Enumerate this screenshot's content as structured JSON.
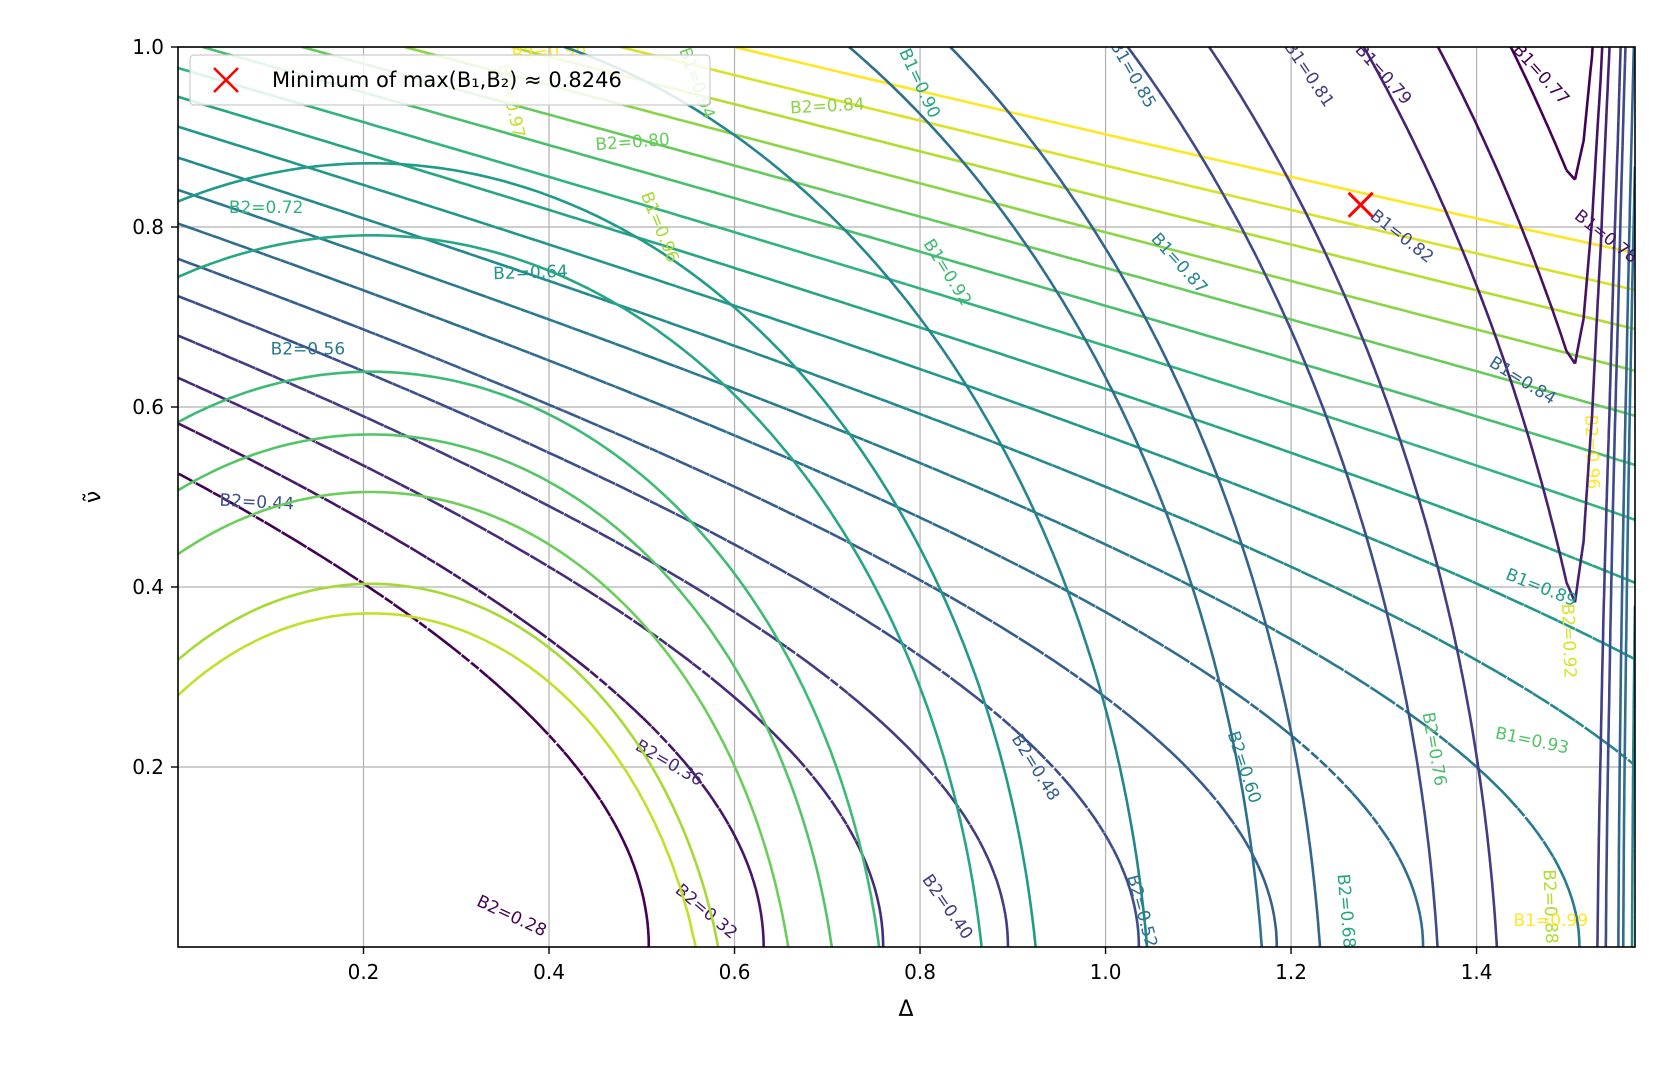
{
  "chart_data": {
    "type": "contour",
    "title": "",
    "xlabel": "Δ",
    "ylabel": "ν̃",
    "xlim": [
      0.0,
      1.5708
    ],
    "ylim": [
      0.0,
      1.0
    ],
    "xticks": [
      "0.2",
      "0.4",
      "0.6",
      "0.8",
      "1.0",
      "1.2",
      "1.4"
    ],
    "xtick_values": [
      0.2,
      0.4,
      0.6,
      0.8,
      1.0,
      1.2,
      1.4
    ],
    "yticks": [
      "0.2",
      "0.4",
      "0.6",
      "0.8",
      "1.0"
    ],
    "ytick_values": [
      0.2,
      0.4,
      0.6,
      0.8,
      1.0
    ],
    "grid": true,
    "colormap": "viridis",
    "legend": {
      "placement": "upper-left",
      "label": "Minimum of max(B₁,B₂) ≈ 0.8246",
      "marker": "x",
      "color": "#ff0000"
    },
    "minimum_point": {
      "x": 1.275,
      "y": 0.8246
    },
    "series": [
      {
        "name": "B1",
        "linestyle": "solid",
        "levels": [
          0.77,
          0.78,
          0.79,
          0.81,
          0.82,
          0.84,
          0.85,
          0.87,
          0.89,
          0.9,
          0.92,
          0.93,
          0.94,
          0.96,
          0.97,
          0.99
        ],
        "labels": [
          {
            "text": "B1=0.77",
            "x": 1.47,
            "y": 0.97,
            "level": 0.77,
            "rot": 48
          },
          {
            "text": "B1=0.78",
            "x": 1.54,
            "y": 0.79,
            "level": 0.78,
            "rot": 38
          },
          {
            "text": "B1=0.79",
            "x": 1.3,
            "y": 0.97,
            "level": 0.79,
            "rot": 48
          },
          {
            "text": "B1=0.81",
            "x": 1.22,
            "y": 0.97,
            "level": 0.81,
            "rot": 56
          },
          {
            "text": "B1=0.82",
            "x": 1.32,
            "y": 0.79,
            "level": 0.82,
            "rot": 38
          },
          {
            "text": "B1=0.84",
            "x": 1.45,
            "y": 0.63,
            "level": 0.84,
            "rot": 32
          },
          {
            "text": "B1=0.85",
            "x": 1.03,
            "y": 0.97,
            "level": 0.85,
            "rot": 60
          },
          {
            "text": "B1=0.87",
            "x": 1.08,
            "y": 0.76,
            "level": 0.87,
            "rot": 48
          },
          {
            "text": "B1=0.89",
            "x": 1.47,
            "y": 0.4,
            "level": 0.89,
            "rot": 22
          },
          {
            "text": "B1=0.90",
            "x": 0.8,
            "y": 0.96,
            "level": 0.9,
            "rot": 65
          },
          {
            "text": "B1=0.92",
            "x": 0.83,
            "y": 0.75,
            "level": 0.92,
            "rot": 58
          },
          {
            "text": "B1=0.93",
            "x": 1.46,
            "y": 0.23,
            "level": 0.93,
            "rot": 12
          },
          {
            "text": "B1=0.94",
            "x": 0.56,
            "y": 0.96,
            "level": 0.94,
            "rot": 70
          },
          {
            "text": "B1=0.96",
            "x": 0.52,
            "y": 0.8,
            "level": 0.96,
            "rot": 68
          },
          {
            "text": "B1=0.97",
            "x": 0.36,
            "y": 0.94,
            "level": 0.97,
            "rot": 78
          },
          {
            "text": "B1=0.99",
            "x": 1.48,
            "y": 0.03,
            "level": 0.99,
            "rot": 0
          }
        ]
      },
      {
        "name": "B2",
        "linestyle": "dashed",
        "levels": [
          0.28,
          0.32,
          0.36,
          0.4,
          0.44,
          0.48,
          0.52,
          0.56,
          0.6,
          0.64,
          0.68,
          0.72,
          0.76,
          0.8,
          0.84,
          0.88,
          0.92,
          0.96
        ],
        "labels": [
          {
            "text": "B2=0.28",
            "x": 0.36,
            "y": 0.035,
            "level": 0.28,
            "rot": 25
          },
          {
            "text": "B2=0.32",
            "x": 0.57,
            "y": 0.04,
            "level": 0.32,
            "rot": 40
          },
          {
            "text": "B2=0.36",
            "x": 0.53,
            "y": 0.205,
            "level": 0.36,
            "rot": 30
          },
          {
            "text": "B2=0.40",
            "x": 0.83,
            "y": 0.045,
            "level": 0.4,
            "rot": 55
          },
          {
            "text": "B2=0.44",
            "x": 0.085,
            "y": 0.495,
            "level": 0.44,
            "rot": 3
          },
          {
            "text": "B2=0.48",
            "x": 0.925,
            "y": 0.2,
            "level": 0.48,
            "rot": 58
          },
          {
            "text": "B2=0.52",
            "x": 1.04,
            "y": 0.04,
            "level": 0.52,
            "rot": 75
          },
          {
            "text": "B2=0.56",
            "x": 0.14,
            "y": 0.665,
            "level": 0.56,
            "rot": 0
          },
          {
            "text": "B2=0.60",
            "x": 1.15,
            "y": 0.2,
            "level": 0.6,
            "rot": 72
          },
          {
            "text": "B2=0.64",
            "x": 0.38,
            "y": 0.75,
            "level": 0.64,
            "rot": -2
          },
          {
            "text": "B2=0.68",
            "x": 1.26,
            "y": 0.04,
            "level": 0.68,
            "rot": 85
          },
          {
            "text": "B2=0.72",
            "x": 0.095,
            "y": 0.822,
            "level": 0.72,
            "rot": 0
          },
          {
            "text": "B2=0.76",
            "x": 1.355,
            "y": 0.22,
            "level": 0.76,
            "rot": 80
          },
          {
            "text": "B2=0.80",
            "x": 0.49,
            "y": 0.895,
            "level": 0.8,
            "rot": -4
          },
          {
            "text": "B2=0.84",
            "x": 0.7,
            "y": 0.935,
            "level": 0.84,
            "rot": -3
          },
          {
            "text": "B2=0.88",
            "x": 1.48,
            "y": 0.045,
            "level": 0.88,
            "rot": 88
          },
          {
            "text": "B2=0.92",
            "x": 1.5,
            "y": 0.34,
            "level": 0.92,
            "rot": 88
          },
          {
            "text": "B2=0.96",
            "x": 1.525,
            "y": 0.55,
            "level": 0.96,
            "rot": 88
          },
          {
            "text": "B2=0.96",
            "x": 0.4,
            "y": 0.995,
            "level": 0.96,
            "rot": -5
          }
        ]
      }
    ]
  }
}
